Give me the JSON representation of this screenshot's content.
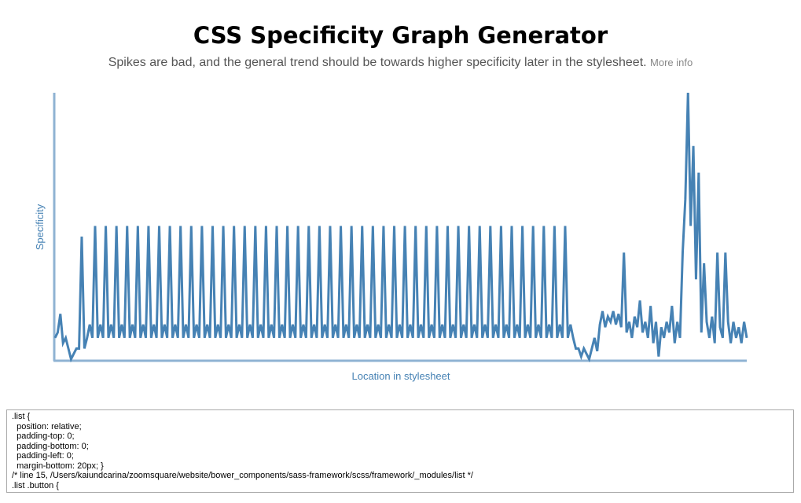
{
  "header": {
    "title": "CSS Specificity Graph Generator",
    "subtitle": "Spikes are bad, and the general trend should be towards higher specificity later in the stylesheet.",
    "link": "More info"
  },
  "chart_data": {
    "type": "line",
    "xlabel": "Location in stylesheet",
    "ylabel": "Specificity",
    "color": "#4682b4",
    "ylim": [
      0,
      100
    ],
    "values": [
      8,
      10,
      17,
      6,
      8,
      4,
      0,
      2,
      4,
      4,
      46,
      4,
      8,
      13,
      8,
      50,
      8,
      13,
      8,
      50,
      8,
      13,
      8,
      50,
      8,
      13,
      8,
      50,
      8,
      13,
      8,
      50,
      8,
      13,
      8,
      50,
      8,
      13,
      8,
      50,
      8,
      13,
      8,
      50,
      8,
      13,
      8,
      50,
      8,
      13,
      8,
      50,
      8,
      13,
      8,
      50,
      8,
      13,
      8,
      50,
      8,
      13,
      8,
      50,
      8,
      13,
      8,
      50,
      8,
      13,
      8,
      50,
      8,
      13,
      8,
      50,
      8,
      13,
      8,
      50,
      8,
      13,
      8,
      50,
      8,
      13,
      8,
      50,
      8,
      13,
      8,
      50,
      8,
      13,
      8,
      50,
      8,
      13,
      8,
      50,
      8,
      13,
      8,
      50,
      8,
      13,
      8,
      50,
      8,
      13,
      8,
      50,
      8,
      13,
      8,
      50,
      8,
      13,
      8,
      50,
      8,
      13,
      8,
      50,
      8,
      13,
      8,
      50,
      8,
      13,
      8,
      50,
      8,
      13,
      8,
      50,
      8,
      13,
      8,
      50,
      8,
      13,
      8,
      50,
      8,
      13,
      8,
      50,
      8,
      13,
      8,
      50,
      8,
      13,
      8,
      50,
      8,
      13,
      8,
      50,
      8,
      13,
      8,
      50,
      8,
      13,
      8,
      50,
      8,
      13,
      8,
      50,
      8,
      13,
      8,
      50,
      8,
      13,
      8,
      50,
      8,
      13,
      8,
      50,
      8,
      13,
      8,
      50,
      8,
      13,
      8,
      50,
      8,
      13,
      8,
      4,
      4,
      1,
      4,
      2,
      0,
      4,
      8,
      3,
      13,
      18,
      12,
      16,
      14,
      18,
      13,
      17,
      12,
      40,
      10,
      14,
      8,
      16,
      12,
      22,
      10,
      14,
      8,
      20,
      6,
      14,
      1,
      12,
      8,
      14,
      10,
      20,
      6,
      14,
      8,
      40,
      60,
      100,
      50,
      80,
      30,
      70,
      10,
      36,
      14,
      8,
      16,
      6,
      40,
      12,
      8,
      40,
      14,
      6,
      14,
      8,
      12,
      6,
      14,
      8
    ]
  },
  "editor": {
    "lines": [
      ".list {",
      "  position: relative;",
      "  padding-top: 0;",
      "  padding-bottom: 0;",
      "  padding-left: 0;",
      "  margin-bottom: 20px; }",
      "/* line 15, /Users/kaiundcarina/zoomsquare/website/bower_components/sass-framework/scss/framework/_modules/list */",
      ".list .button {"
    ]
  }
}
